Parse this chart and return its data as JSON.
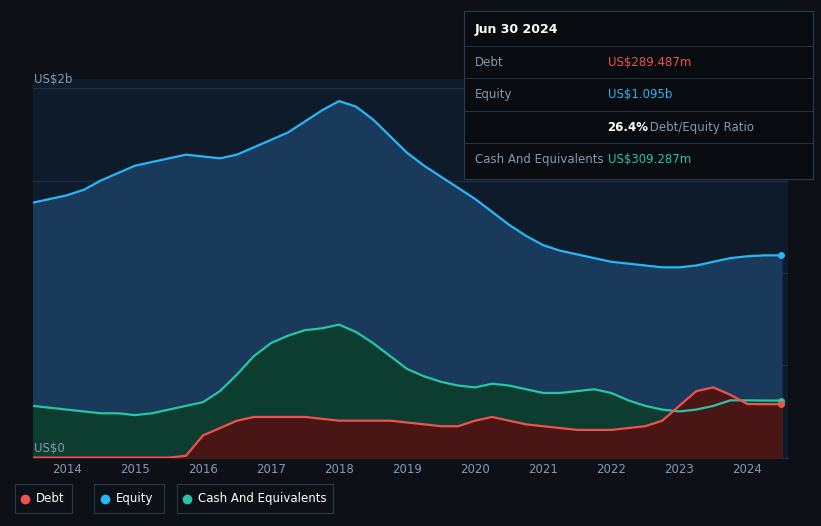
{
  "bg_color": "#0d1117",
  "plot_bg_color": "#0d1b2a",
  "grid_color": "#1e3352",
  "title_text": "Jun 30 2024",
  "ylabel_top": "US$2b",
  "ylabel_bottom": "US$0",
  "x_ticks": [
    2014,
    2015,
    2016,
    2017,
    2018,
    2019,
    2020,
    2021,
    2022,
    2023,
    2024
  ],
  "equity_color": "#29b6f6",
  "equity_fill": "#1a3a5c",
  "debt_color": "#ef5350",
  "debt_fill": "#4a1515",
  "cash_color": "#26c6a6",
  "cash_fill": "#0d3d30",
  "tooltip_bg": "#080c10",
  "years": [
    2013.5,
    2013.75,
    2014.0,
    2014.25,
    2014.5,
    2014.75,
    2015.0,
    2015.25,
    2015.5,
    2015.75,
    2016.0,
    2016.25,
    2016.5,
    2016.75,
    2017.0,
    2017.25,
    2017.5,
    2017.75,
    2018.0,
    2018.25,
    2018.5,
    2018.75,
    2019.0,
    2019.25,
    2019.5,
    2019.75,
    2020.0,
    2020.25,
    2020.5,
    2020.75,
    2021.0,
    2021.25,
    2021.5,
    2021.75,
    2022.0,
    2022.25,
    2022.5,
    2022.75,
    2023.0,
    2023.25,
    2023.5,
    2023.75,
    2024.0,
    2024.25,
    2024.5
  ],
  "equity": [
    1.38,
    1.4,
    1.42,
    1.45,
    1.5,
    1.54,
    1.58,
    1.6,
    1.62,
    1.64,
    1.63,
    1.62,
    1.64,
    1.68,
    1.72,
    1.76,
    1.82,
    1.88,
    1.93,
    1.9,
    1.83,
    1.74,
    1.65,
    1.58,
    1.52,
    1.46,
    1.4,
    1.33,
    1.26,
    1.2,
    1.15,
    1.12,
    1.1,
    1.08,
    1.06,
    1.05,
    1.04,
    1.03,
    1.03,
    1.04,
    1.06,
    1.08,
    1.09,
    1.095,
    1.095
  ],
  "cash": [
    0.28,
    0.27,
    0.26,
    0.25,
    0.24,
    0.24,
    0.23,
    0.24,
    0.26,
    0.28,
    0.3,
    0.36,
    0.45,
    0.55,
    0.62,
    0.66,
    0.69,
    0.7,
    0.72,
    0.68,
    0.62,
    0.55,
    0.48,
    0.44,
    0.41,
    0.39,
    0.38,
    0.4,
    0.39,
    0.37,
    0.35,
    0.35,
    0.36,
    0.37,
    0.35,
    0.31,
    0.28,
    0.26,
    0.25,
    0.26,
    0.28,
    0.31,
    0.31,
    0.309,
    0.309
  ],
  "debt": [
    0.0,
    0.0,
    0.0,
    0.0,
    0.0,
    0.0,
    0.0,
    0.0,
    0.0,
    0.01,
    0.12,
    0.16,
    0.2,
    0.22,
    0.22,
    0.22,
    0.22,
    0.21,
    0.2,
    0.2,
    0.2,
    0.2,
    0.19,
    0.18,
    0.17,
    0.17,
    0.2,
    0.22,
    0.2,
    0.18,
    0.17,
    0.16,
    0.15,
    0.15,
    0.15,
    0.16,
    0.17,
    0.2,
    0.28,
    0.36,
    0.38,
    0.34,
    0.29,
    0.289,
    0.289
  ],
  "marker_x": 2024.5,
  "marker_equity": 1.095,
  "marker_cash": 0.309,
  "marker_debt": 0.289,
  "xlim": [
    2013.5,
    2024.6
  ],
  "ylim": [
    0,
    2.05
  ]
}
